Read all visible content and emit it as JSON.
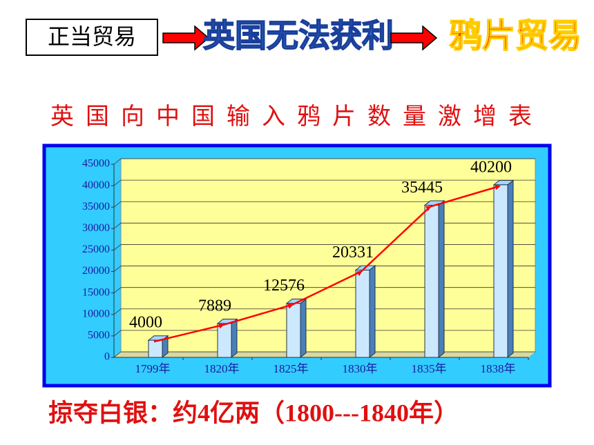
{
  "header": {
    "box_text": "正当贸易",
    "middle_text": "英国无法获利",
    "end_text": "鸦片贸易"
  },
  "chart_data": {
    "type": "bar",
    "title": "英国向中国输入鸦片数量激增表",
    "categories": [
      "1799年",
      "1820年",
      "1825年",
      "1830年",
      "1835年",
      "1838年"
    ],
    "values": [
      4000,
      7889,
      12576,
      20331,
      35445,
      40200
    ],
    "color": "#cce8ff",
    "trend_line": true,
    "trend_color": "#ff0000",
    "ylim": [
      0,
      45000
    ],
    "yticks": [
      0,
      5000,
      10000,
      15000,
      20000,
      25000,
      30000,
      35000,
      40000,
      45000
    ],
    "grid": true
  },
  "footer": {
    "text": "掠夺白银：约4亿两（1800---1840年）"
  }
}
